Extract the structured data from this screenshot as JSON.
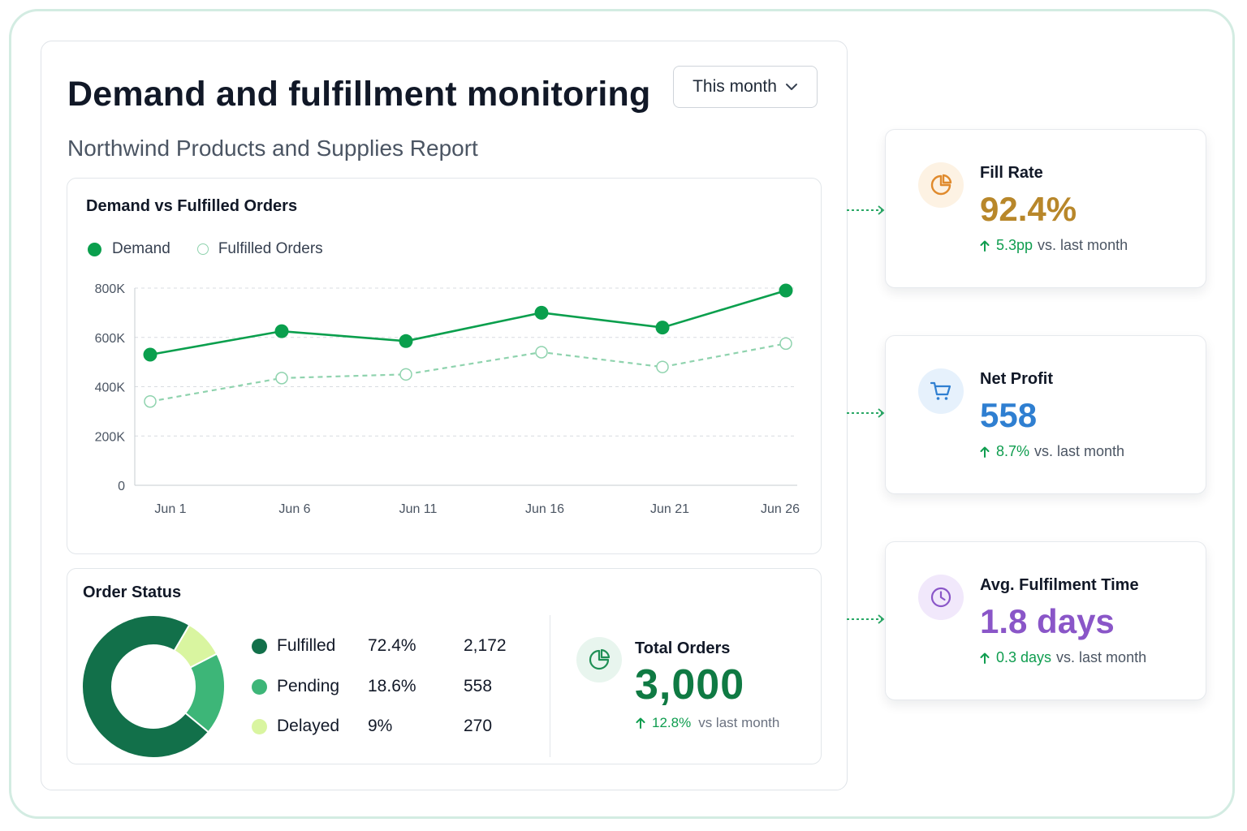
{
  "header": {
    "title": "Demand and fulfillment monitoring",
    "subtitle": "Northwind Products and Supplies Report",
    "period_select": "This month"
  },
  "line_panel": {
    "title": "Demand vs Fulfilled Orders",
    "legend": [
      "Demand",
      "Fulfilled Orders"
    ]
  },
  "status_panel": {
    "title": "Order Status",
    "rows": [
      {
        "label": "Fulfilled",
        "pct": "72.4%",
        "count": "2,172",
        "color": "#12704a"
      },
      {
        "label": "Pending",
        "pct": "18.6%",
        "count": "558",
        "color": "#3db678"
      },
      {
        "label": "Delayed",
        "pct": "9%",
        "count": "270",
        "color": "#d9f5a0"
      }
    ],
    "total_label": "Total Orders",
    "total_value": "3,000",
    "total_delta": "12.8%",
    "total_delta_suffix": "vs last month"
  },
  "kpis": [
    {
      "label": "Fill Rate",
      "value": "92.4%",
      "delta": "5.3pp",
      "suffix": "vs. last month",
      "icon": "pie-chart-icon",
      "color": "#b8872a",
      "bg": "#fdf2e3"
    },
    {
      "label": "Net Profit",
      "value": "558",
      "delta": "8.7%",
      "suffix": "vs. last month",
      "icon": "cart-icon",
      "color": "#2f7fd1",
      "bg": "#e6f1fc"
    },
    {
      "label": "Avg. Fulfilment Time",
      "value": "1.8 days",
      "delta": "0.3 days",
      "suffix": "vs. last month",
      "icon": "clock-icon",
      "color": "#8a56c8",
      "bg": "#f1e8fb"
    }
  ],
  "chart_data": [
    {
      "type": "line",
      "title": "Demand vs Fulfilled Orders",
      "x": [
        "Jun 1",
        "Jun 6",
        "Jun 11",
        "Jun 16",
        "Jun 21",
        "Jun 26"
      ],
      "y_ticks": [
        "0",
        "200K",
        "400K",
        "600K",
        "800K"
      ],
      "ylim": [
        0,
        800000
      ],
      "grid": true,
      "legend": "top-left",
      "series": [
        {
          "name": "Demand",
          "values": [
            530000,
            625000,
            585000,
            700000,
            640000,
            790000
          ],
          "color": "#0a9f4d",
          "style": "solid"
        },
        {
          "name": "Fulfilled Orders",
          "values": [
            340000,
            435000,
            450000,
            540000,
            480000,
            575000
          ],
          "color": "#8fd3ae",
          "style": "dashed"
        }
      ]
    },
    {
      "type": "pie",
      "title": "Order Status",
      "categories": [
        "Fulfilled",
        "Pending",
        "Delayed"
      ],
      "values": [
        2172,
        558,
        270
      ],
      "colors": [
        "#12704a",
        "#3db678",
        "#d9f5a0"
      ],
      "legend": "right"
    }
  ]
}
